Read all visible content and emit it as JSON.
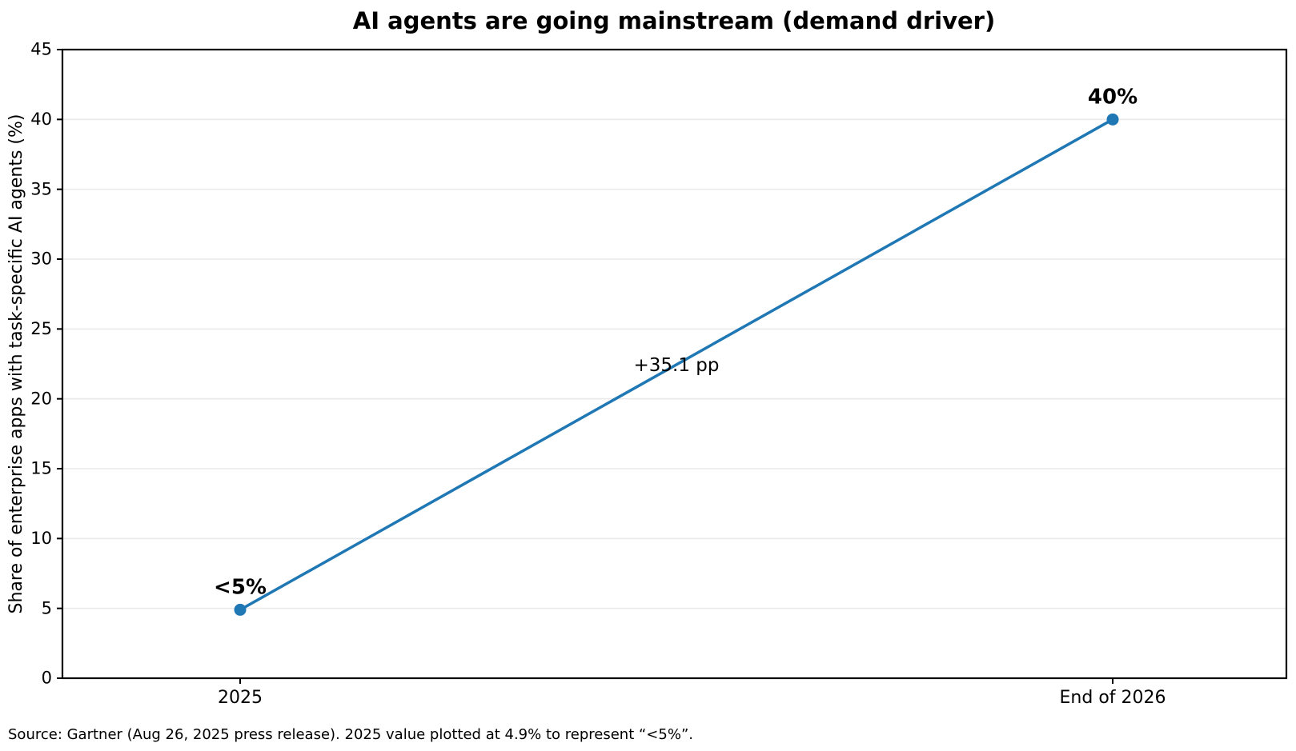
{
  "title": "AI agents are going mainstream (demand driver)",
  "source_note": "Source: Gartner (Aug 26, 2025 press release). 2025 value plotted at 4.9% to represent “<5%”.",
  "colors": {
    "line": "#1f77b4",
    "marker": "#1f77b4",
    "grid": "#e9e9e9",
    "axis": "#000000",
    "text": "#000000",
    "source_text": "#1a1a1a",
    "background": "#ffffff"
  },
  "chart_data": {
    "type": "line",
    "title": "AI agents are going mainstream (demand driver)",
    "categories": [
      "2025",
      "End of 2026"
    ],
    "values": [
      4.9,
      40
    ],
    "point_labels": [
      "<5%",
      "40%"
    ],
    "midpoint_annotation": "+35.1 pp",
    "xlabel": "",
    "ylabel": "Share of enterprise apps with task-specific AI agents (%)",
    "ylim": [
      0,
      45
    ],
    "ytick_step": 5,
    "yticks": [
      0,
      5,
      10,
      15,
      20,
      25,
      30,
      35,
      40,
      45
    ],
    "grid": "horizontal",
    "legend": "none"
  }
}
